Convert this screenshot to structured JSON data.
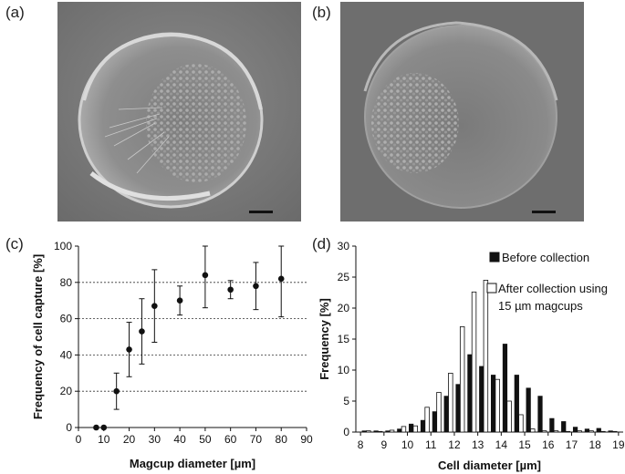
{
  "panels": {
    "a": "(a)",
    "b": "(b)",
    "c": "(c)",
    "d": "(d)"
  },
  "chart_data": [
    {
      "type": "scatter",
      "xlabel": "Magcup diameter [µm]",
      "ylabel": "Frequency of cell capture [%]",
      "xlim": [
        0,
        90
      ],
      "ylim": [
        0,
        100
      ],
      "xticks": [
        0,
        10,
        20,
        30,
        40,
        50,
        60,
        70,
        80,
        90
      ],
      "yticks": [
        0,
        20,
        40,
        60,
        80,
        100
      ],
      "grid": "horizontal dashed at 20, 40, 60, 80",
      "x": [
        7,
        10,
        15,
        20,
        25,
        30,
        40,
        50,
        60,
        70,
        80
      ],
      "y": [
        0,
        0,
        20,
        43,
        53,
        67,
        70,
        84,
        76,
        78,
        82
      ],
      "err_low": [
        0,
        0,
        10,
        15,
        18,
        20,
        8,
        18,
        5,
        13,
        21
      ],
      "err_high": [
        0,
        0,
        10,
        15,
        18,
        20,
        8,
        18,
        5,
        13,
        18
      ]
    },
    {
      "type": "bar",
      "xlabel": "Cell diameter [µm]",
      "ylabel": "Frequency [%]",
      "xlim": [
        7.8,
        19.2
      ],
      "ylim": [
        0,
        30
      ],
      "xticks": [
        8,
        9,
        10,
        11,
        12,
        13,
        14,
        15,
        16,
        17,
        18,
        19
      ],
      "yticks": [
        0,
        5,
        10,
        15,
        20,
        25,
        30
      ],
      "legend": "top-right",
      "x": [
        8,
        8.5,
        9,
        9.5,
        10,
        10.5,
        11,
        11.5,
        12,
        12.5,
        13,
        13.5,
        14,
        14.5,
        15,
        15.5,
        16,
        16.5,
        17,
        17.5,
        18,
        18.5
      ],
      "series": [
        {
          "name": "Before collection",
          "values": [
            0.2,
            0.2,
            0.2,
            0.5,
            1.3,
            1.9,
            3.3,
            5.8,
            7.7,
            12.5,
            10.6,
            9.2,
            14.2,
            9.2,
            7.1,
            5.8,
            2.2,
            1.7,
            0.8,
            0.5,
            0.6,
            0.2
          ]
        },
        {
          "name": "After collection using 15 µm magcups",
          "legend_lines": [
            "After collection using",
            "15 µm magcups"
          ],
          "values": [
            0.2,
            0.1,
            0.3,
            0.9,
            1.0,
            4.0,
            6.4,
            9.5,
            17.0,
            22.6,
            24.5,
            8.5,
            5.0,
            2.8,
            0.5,
            0.2,
            0.2,
            0.1,
            0.2,
            0.2,
            0.1,
            0.1
          ]
        }
      ]
    }
  ]
}
